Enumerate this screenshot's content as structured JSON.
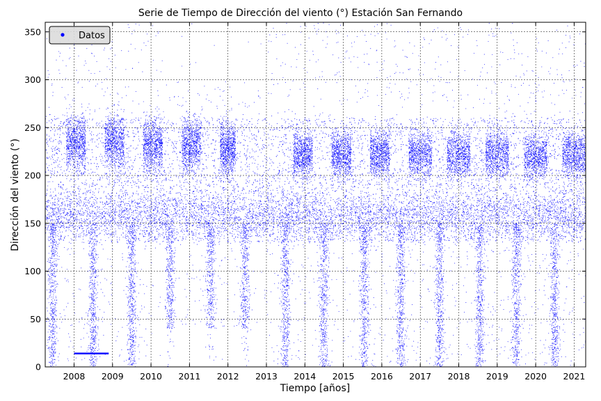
{
  "chart_data": {
    "type": "scatter",
    "title": "Serie de Tiempo de Dirección del viento (°) Estación San Fernando",
    "xlabel": "Tiempo [años]",
    "ylabel": "Dirección del viento (°)",
    "xlim": [
      2007.25,
      2021.3
    ],
    "ylim": [
      0,
      360
    ],
    "x_ticks": [
      "2008",
      "2009",
      "2010",
      "2011",
      "2012",
      "2013",
      "2014",
      "2015",
      "2016",
      "2017",
      "2018",
      "2019",
      "2020",
      "2021"
    ],
    "y_ticks": [
      "0",
      "50",
      "100",
      "150",
      "200",
      "250",
      "300",
      "350"
    ],
    "grid": true,
    "legend": {
      "position": "top-left",
      "entries": [
        {
          "label": "Datos",
          "color": "#0000ff"
        }
      ]
    },
    "series": [
      {
        "name": "Datos",
        "color": "#0000ff",
        "marker": "point",
        "data_coverage": {
          "start": 2007.25,
          "end": 2021.3,
          "gaps": [
            [
              2010.3,
              2013.0
            ]
          ],
          "gap_note_values_above": 0
        },
        "clusters": [
          {
            "x": [
              2007.25,
              2021.3
            ],
            "y_center": 158,
            "y_spread": 12,
            "weight": 0.3
          },
          {
            "x": [
              2007.8,
              2008.3
            ],
            "y_center": 235,
            "y_spread": 14,
            "weight": 0.05
          },
          {
            "x": [
              2008.8,
              2009.3
            ],
            "y_center": 235,
            "y_spread": 14,
            "weight": 0.05
          },
          {
            "x": [
              2009.8,
              2010.3
            ],
            "y_center": 232,
            "y_spread": 14,
            "weight": 0.05
          },
          {
            "x": [
              2010.8,
              2011.3
            ],
            "y_center": 233,
            "y_spread": 14,
            "weight": 0.05
          },
          {
            "x": [
              2011.8,
              2012.2
            ],
            "y_center": 228,
            "y_spread": 14,
            "weight": 0.05
          },
          {
            "x": [
              2013.7,
              2014.2
            ],
            "y_center": 222,
            "y_spread": 12,
            "weight": 0.05
          },
          {
            "x": [
              2014.7,
              2015.2
            ],
            "y_center": 222,
            "y_spread": 12,
            "weight": 0.05
          },
          {
            "x": [
              2015.7,
              2016.2
            ],
            "y_center": 222,
            "y_spread": 12,
            "weight": 0.05
          },
          {
            "x": [
              2016.7,
              2017.3
            ],
            "y_center": 222,
            "y_spread": 12,
            "weight": 0.05
          },
          {
            "x": [
              2017.7,
              2018.3
            ],
            "y_center": 222,
            "y_spread": 12,
            "weight": 0.05
          },
          {
            "x": [
              2018.7,
              2019.3
            ],
            "y_center": 222,
            "y_spread": 12,
            "weight": 0.05
          },
          {
            "x": [
              2019.7,
              2020.3
            ],
            "y_center": 220,
            "y_spread": 12,
            "weight": 0.05
          },
          {
            "x": [
              2020.7,
              2021.3
            ],
            "y_center": 222,
            "y_spread": 12,
            "weight": 0.05
          }
        ],
        "winter_low_direction_bands_x": [
          2007.45,
          2008.5,
          2009.5,
          2010.5,
          2011.55,
          2012.45,
          2013.5,
          2014.5,
          2015.55,
          2016.5,
          2017.5,
          2018.55,
          2019.5,
          2020.5
        ],
        "horizontal_line": {
          "x": [
            2008.0,
            2008.9
          ],
          "y": 14
        }
      }
    ]
  }
}
